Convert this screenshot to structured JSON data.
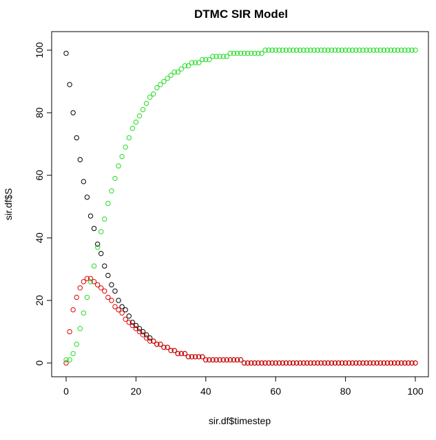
{
  "chart_data": {
    "type": "scatter",
    "title": "DTMC SIR Model",
    "xlabel": "sir.df$timestep",
    "ylabel": "sir.df$S",
    "xlim": [
      0,
      100
    ],
    "ylim": [
      0,
      100
    ],
    "xticks": [
      0,
      20,
      40,
      60,
      80,
      100
    ],
    "yticks": [
      0,
      20,
      40,
      60,
      80,
      100
    ],
    "grid": false,
    "marker": "open-circle",
    "x_start": 0,
    "x_step": 1,
    "series": [
      {
        "color": "#000000",
        "values": [
          99,
          89,
          80,
          72,
          65,
          58,
          53,
          47,
          43,
          38,
          35,
          31,
          28,
          25,
          23,
          20,
          18,
          17,
          15,
          13,
          12,
          11,
          10,
          9,
          8,
          7,
          6,
          6,
          5,
          5,
          4,
          4,
          3,
          3,
          3,
          2,
          2,
          2,
          2,
          2,
          1,
          1,
          1,
          1,
          1,
          1,
          1,
          1,
          1,
          1,
          1,
          0,
          0,
          0,
          0,
          0,
          0,
          0,
          0,
          0,
          0,
          0,
          0,
          0,
          0,
          0,
          0,
          0,
          0,
          0,
          0,
          0,
          0,
          0,
          0,
          0,
          0,
          0,
          0,
          0,
          0,
          0,
          0,
          0,
          0,
          0,
          0,
          0,
          0,
          0,
          0,
          0,
          0,
          0,
          0,
          0,
          0,
          0,
          0,
          0,
          0
        ]
      },
      {
        "color": "#df0000",
        "values": [
          0,
          10,
          17,
          21,
          24,
          26,
          27,
          27,
          26,
          25,
          24,
          23,
          21,
          20,
          18,
          17,
          16,
          14,
          13,
          12,
          11,
          10,
          9,
          8,
          7,
          7,
          6,
          6,
          5,
          5,
          4,
          4,
          3,
          3,
          3,
          2,
          2,
          2,
          2,
          2,
          1,
          1,
          1,
          1,
          1,
          1,
          1,
          1,
          1,
          1,
          1,
          0,
          0,
          0,
          0,
          0,
          0,
          0,
          0,
          0,
          0,
          0,
          0,
          0,
          0,
          0,
          0,
          0,
          0,
          0,
          0,
          0,
          0,
          0,
          0,
          0,
          0,
          0,
          0,
          0,
          0,
          0,
          0,
          0,
          0,
          0,
          0,
          0,
          0,
          0,
          0,
          0,
          0,
          0,
          0,
          0,
          0,
          0,
          0,
          0,
          0
        ]
      },
      {
        "color": "#22dd22",
        "values": [
          1,
          1,
          3,
          6,
          11,
          16,
          21,
          26,
          31,
          37,
          42,
          46,
          51,
          55,
          59,
          63,
          66,
          69,
          72,
          75,
          77,
          79,
          81,
          83,
          85,
          86,
          88,
          89,
          90,
          91,
          92,
          93,
          93,
          94,
          95,
          95,
          96,
          96,
          96,
          97,
          97,
          97,
          98,
          98,
          98,
          98,
          98,
          99,
          99,
          99,
          99,
          99,
          99,
          99,
          99,
          99,
          99,
          100,
          100,
          100,
          100,
          100,
          100,
          100,
          100,
          100,
          100,
          100,
          100,
          100,
          100,
          100,
          100,
          100,
          100,
          100,
          100,
          100,
          100,
          100,
          100,
          100,
          100,
          100,
          100,
          100,
          100,
          100,
          100,
          100,
          100,
          100,
          100,
          100,
          100,
          100,
          100,
          100,
          100,
          100,
          100
        ]
      }
    ]
  }
}
